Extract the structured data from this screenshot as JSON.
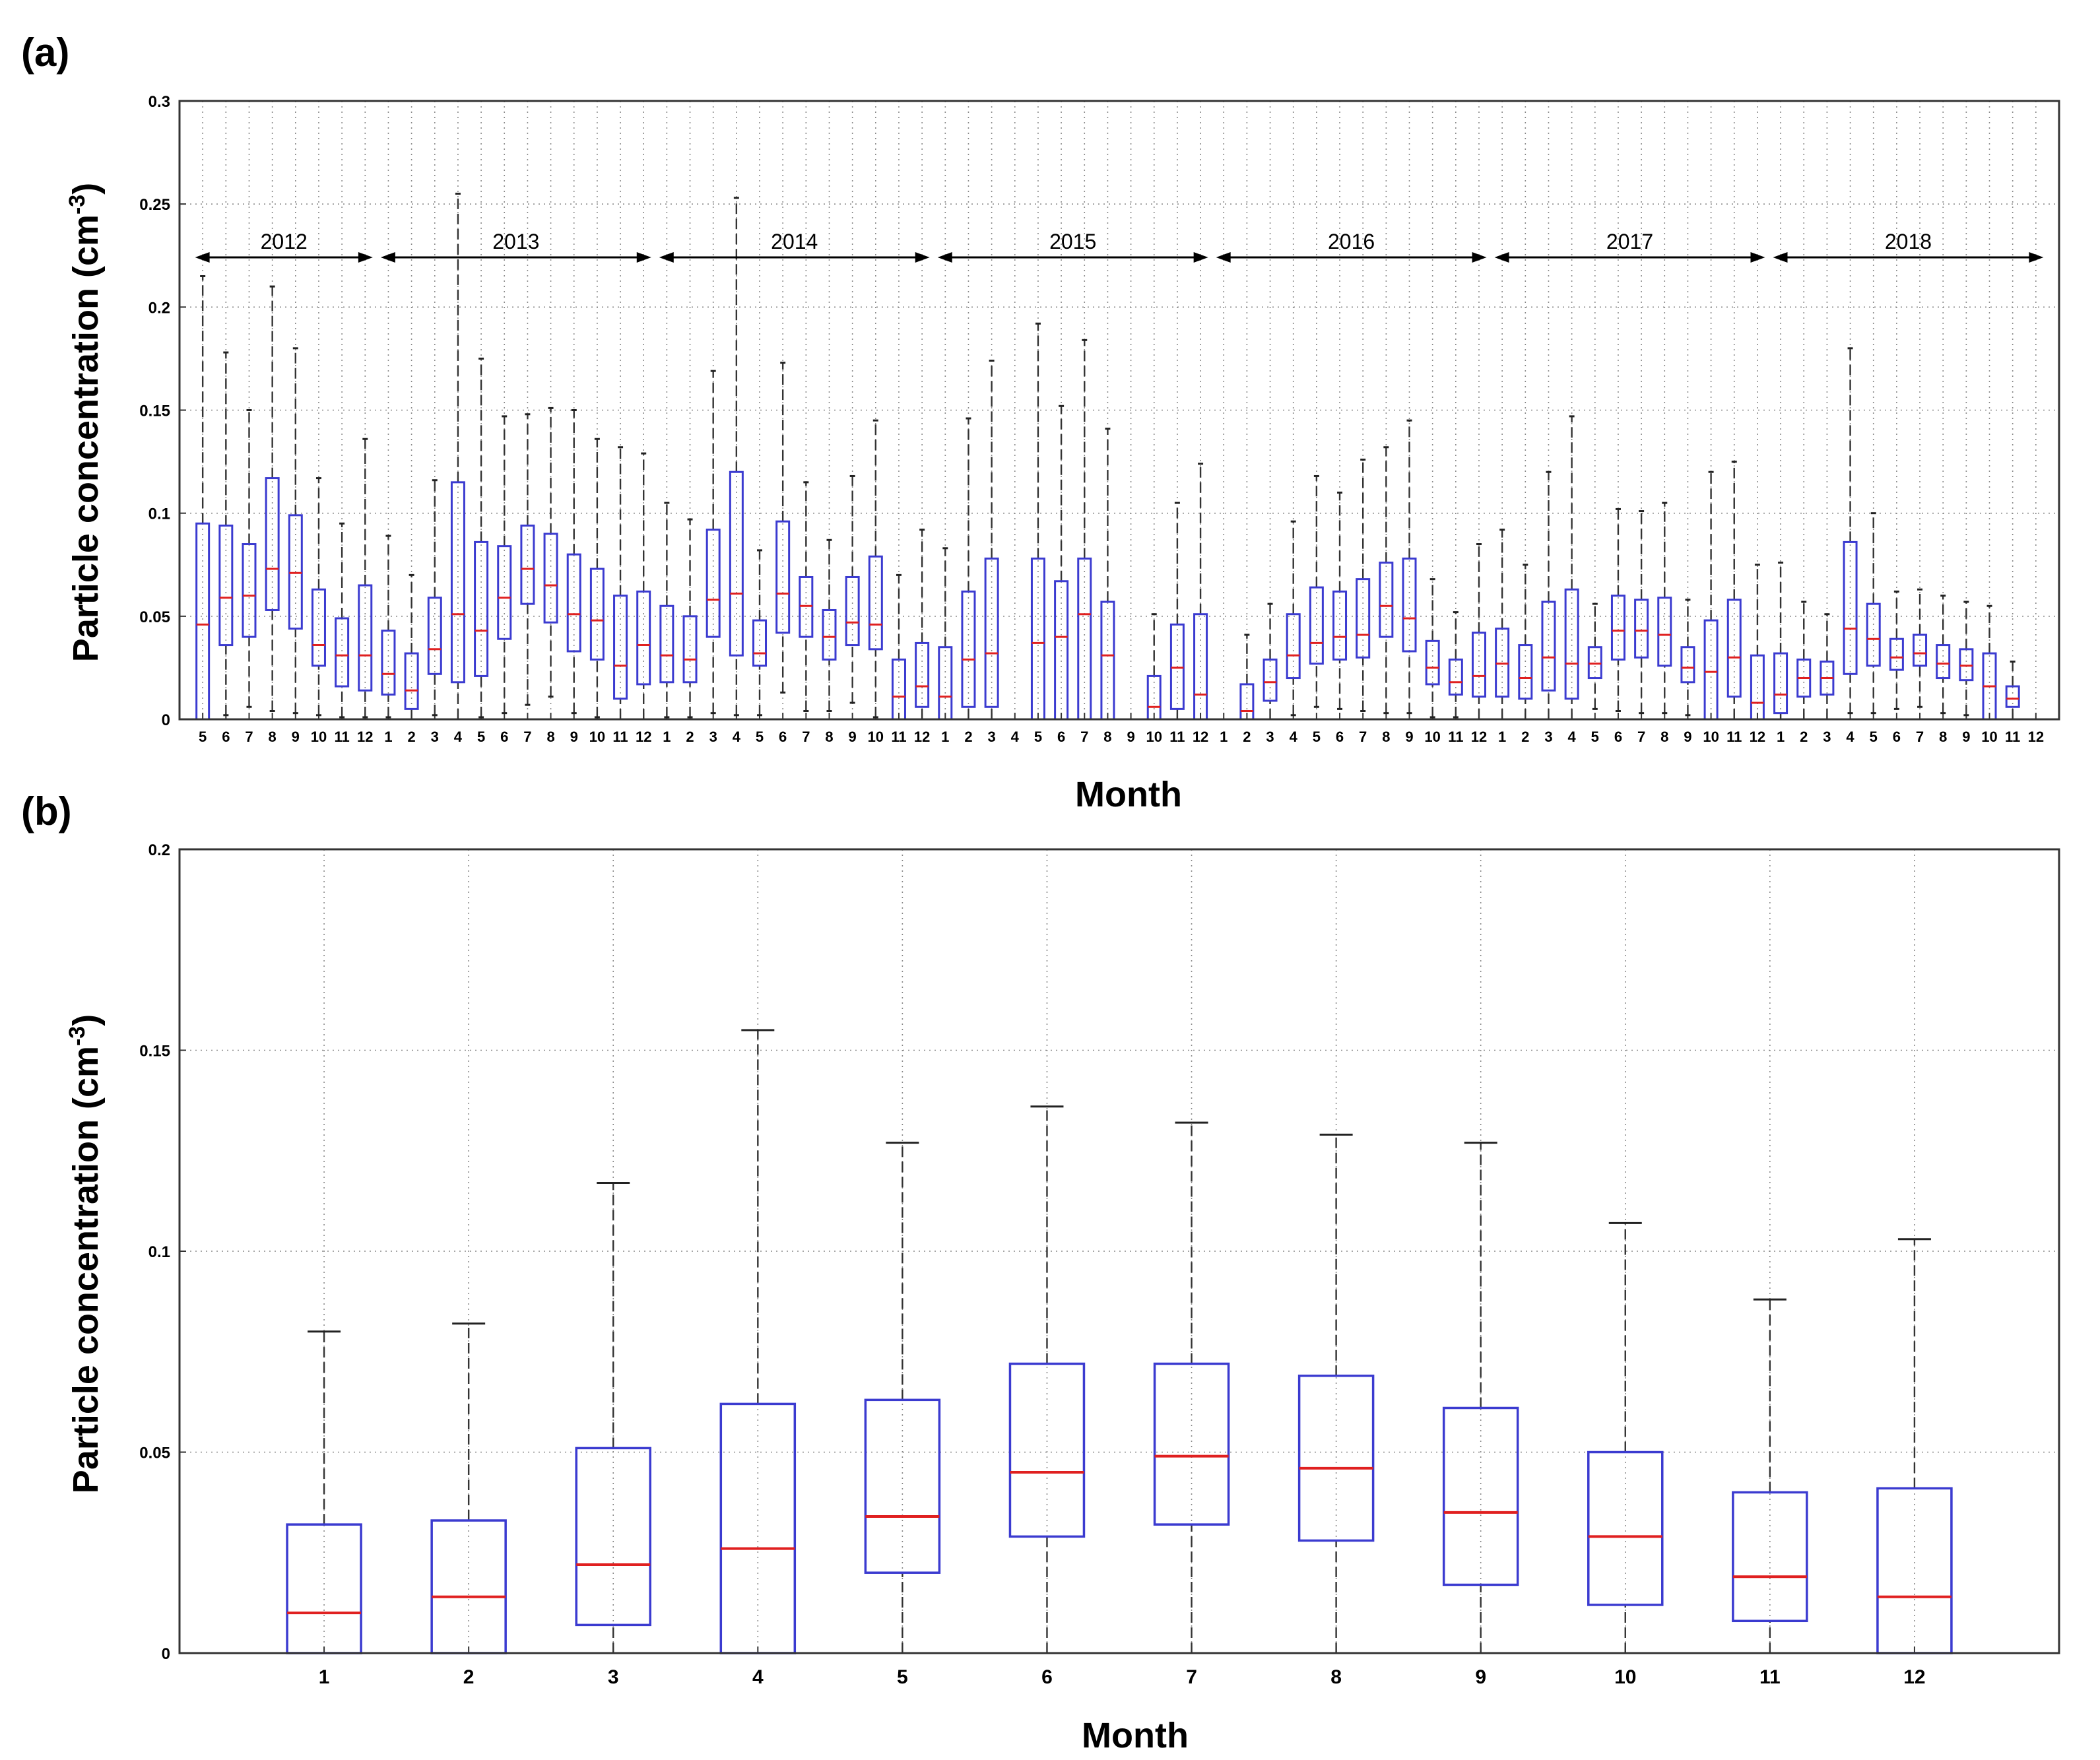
{
  "chart_data": [
    {
      "panel": "(a)",
      "type": "box",
      "xlabel": "Month",
      "ylabel_main": "Particle concentration (cm",
      "ylabel_sup": "-3",
      "ylabel_close": ")",
      "ylim": [
        0,
        0.3
      ],
      "yticks": [
        "0",
        "0.05",
        "0.1",
        "0.15",
        "0.2",
        "0.25",
        "0.3"
      ],
      "grid": true,
      "year_spans": [
        {
          "label": "2012",
          "from": 0,
          "to": 8
        },
        {
          "label": "2013",
          "from": 8,
          "to": 20
        },
        {
          "label": "2014",
          "from": 20,
          "to": 32
        },
        {
          "label": "2015",
          "from": 32,
          "to": 44
        },
        {
          "label": "2016",
          "from": 44,
          "to": 56
        },
        {
          "label": "2017",
          "from": 56,
          "to": 68
        },
        {
          "label": "2018",
          "from": 68,
          "to": 80
        }
      ],
      "boxes": [
        {
          "month": "5",
          "year": 2012,
          "q1": 0.0,
          "median": 0.046,
          "q3": 0.095,
          "whisker_low": 0.0,
          "whisker_high": 0.215
        },
        {
          "month": "6",
          "year": 2012,
          "q1": 0.036,
          "median": 0.059,
          "q3": 0.094,
          "whisker_low": 0.002,
          "whisker_high": 0.178
        },
        {
          "month": "7",
          "year": 2012,
          "q1": 0.04,
          "median": 0.06,
          "q3": 0.085,
          "whisker_low": 0.006,
          "whisker_high": 0.15
        },
        {
          "month": "8",
          "year": 2012,
          "q1": 0.053,
          "median": 0.073,
          "q3": 0.117,
          "whisker_low": 0.004,
          "whisker_high": 0.21
        },
        {
          "month": "9",
          "year": 2012,
          "q1": 0.044,
          "median": 0.071,
          "q3": 0.099,
          "whisker_low": 0.003,
          "whisker_high": 0.18
        },
        {
          "month": "10",
          "year": 2012,
          "q1": 0.026,
          "median": 0.036,
          "q3": 0.063,
          "whisker_low": 0.002,
          "whisker_high": 0.117
        },
        {
          "month": "11",
          "year": 2012,
          "q1": 0.016,
          "median": 0.031,
          "q3": 0.049,
          "whisker_low": 0.001,
          "whisker_high": 0.095
        },
        {
          "month": "12",
          "year": 2012,
          "q1": 0.014,
          "median": 0.031,
          "q3": 0.065,
          "whisker_low": 0.001,
          "whisker_high": 0.136
        },
        {
          "month": "1",
          "year": 2013,
          "q1": 0.012,
          "median": 0.022,
          "q3": 0.043,
          "whisker_low": 0.001,
          "whisker_high": 0.089
        },
        {
          "month": "2",
          "year": 2013,
          "q1": 0.005,
          "median": 0.014,
          "q3": 0.032,
          "whisker_low": 0.0,
          "whisker_high": 0.07
        },
        {
          "month": "3",
          "year": 2013,
          "q1": 0.022,
          "median": 0.034,
          "q3": 0.059,
          "whisker_low": 0.002,
          "whisker_high": 0.116
        },
        {
          "month": "4",
          "year": 2013,
          "q1": 0.018,
          "median": 0.051,
          "q3": 0.115,
          "whisker_low": 0.0,
          "whisker_high": 0.255
        },
        {
          "month": "5",
          "year": 2013,
          "q1": 0.021,
          "median": 0.043,
          "q3": 0.086,
          "whisker_low": 0.001,
          "whisker_high": 0.175
        },
        {
          "month": "6",
          "year": 2013,
          "q1": 0.039,
          "median": 0.059,
          "q3": 0.084,
          "whisker_low": 0.003,
          "whisker_high": 0.147
        },
        {
          "month": "7",
          "year": 2013,
          "q1": 0.056,
          "median": 0.073,
          "q3": 0.094,
          "whisker_low": 0.007,
          "whisker_high": 0.148
        },
        {
          "month": "8",
          "year": 2013,
          "q1": 0.047,
          "median": 0.065,
          "q3": 0.09,
          "whisker_low": 0.011,
          "whisker_high": 0.151
        },
        {
          "month": "9",
          "year": 2013,
          "q1": 0.033,
          "median": 0.051,
          "q3": 0.08,
          "whisker_low": 0.003,
          "whisker_high": 0.15
        },
        {
          "month": "10",
          "year": 2013,
          "q1": 0.029,
          "median": 0.048,
          "q3": 0.073,
          "whisker_low": 0.001,
          "whisker_high": 0.136
        },
        {
          "month": "11",
          "year": 2013,
          "q1": 0.01,
          "median": 0.026,
          "q3": 0.06,
          "whisker_low": 0.0,
          "whisker_high": 0.132
        },
        {
          "month": "12",
          "year": 2013,
          "q1": 0.017,
          "median": 0.036,
          "q3": 0.062,
          "whisker_low": 0.0,
          "whisker_high": 0.129
        },
        {
          "month": "1",
          "year": 2014,
          "q1": 0.018,
          "median": 0.031,
          "q3": 0.055,
          "whisker_low": 0.001,
          "whisker_high": 0.105
        },
        {
          "month": "2",
          "year": 2014,
          "q1": 0.018,
          "median": 0.029,
          "q3": 0.05,
          "whisker_low": 0.001,
          "whisker_high": 0.097
        },
        {
          "month": "3",
          "year": 2014,
          "q1": 0.04,
          "median": 0.058,
          "q3": 0.092,
          "whisker_low": 0.003,
          "whisker_high": 0.169
        },
        {
          "month": "4",
          "year": 2014,
          "q1": 0.031,
          "median": 0.061,
          "q3": 0.12,
          "whisker_low": 0.002,
          "whisker_high": 0.253
        },
        {
          "month": "5",
          "year": 2014,
          "q1": 0.026,
          "median": 0.032,
          "q3": 0.048,
          "whisker_low": 0.002,
          "whisker_high": 0.082
        },
        {
          "month": "6",
          "year": 2014,
          "q1": 0.042,
          "median": 0.061,
          "q3": 0.096,
          "whisker_low": 0.013,
          "whisker_high": 0.173
        },
        {
          "month": "7",
          "year": 2014,
          "q1": 0.04,
          "median": 0.055,
          "q3": 0.069,
          "whisker_low": 0.004,
          "whisker_high": 0.115
        },
        {
          "month": "8",
          "year": 2014,
          "q1": 0.029,
          "median": 0.04,
          "q3": 0.053,
          "whisker_low": 0.004,
          "whisker_high": 0.087
        },
        {
          "month": "9",
          "year": 2014,
          "q1": 0.036,
          "median": 0.047,
          "q3": 0.069,
          "whisker_low": 0.008,
          "whisker_high": 0.118
        },
        {
          "month": "10",
          "year": 2014,
          "q1": 0.034,
          "median": 0.046,
          "q3": 0.079,
          "whisker_low": 0.001,
          "whisker_high": 0.145
        },
        {
          "month": "11",
          "year": 2014,
          "q1": 0.0,
          "median": 0.011,
          "q3": 0.029,
          "whisker_low": 0.0,
          "whisker_high": 0.07
        },
        {
          "month": "12",
          "year": 2014,
          "q1": 0.006,
          "median": 0.016,
          "q3": 0.037,
          "whisker_low": 0.0,
          "whisker_high": 0.092
        },
        {
          "month": "1",
          "year": 2015,
          "q1": 0.0,
          "median": 0.011,
          "q3": 0.035,
          "whisker_low": 0.0,
          "whisker_high": 0.083
        },
        {
          "month": "2",
          "year": 2015,
          "q1": 0.006,
          "median": 0.029,
          "q3": 0.062,
          "whisker_low": 0.0,
          "whisker_high": 0.146
        },
        {
          "month": "3",
          "year": 2015,
          "q1": 0.006,
          "median": 0.032,
          "q3": 0.078,
          "whisker_low": 0.0,
          "whisker_high": 0.174
        },
        {
          "month": "4",
          "year": 2015,
          "empty": true
        },
        {
          "month": "5",
          "year": 2015,
          "q1": 0.0,
          "median": 0.037,
          "q3": 0.078,
          "whisker_low": 0.0,
          "whisker_high": 0.192
        },
        {
          "month": "6",
          "year": 2015,
          "q1": 0.0,
          "median": 0.04,
          "q3": 0.067,
          "whisker_low": 0.0,
          "whisker_high": 0.152
        },
        {
          "month": "7",
          "year": 2015,
          "q1": 0.0,
          "median": 0.051,
          "q3": 0.078,
          "whisker_low": 0.0,
          "whisker_high": 0.184
        },
        {
          "month": "8",
          "year": 2015,
          "q1": 0.0,
          "median": 0.031,
          "q3": 0.057,
          "whisker_low": 0.0,
          "whisker_high": 0.141
        },
        {
          "month": "9",
          "year": 2015,
          "empty": true
        },
        {
          "month": "10",
          "year": 2015,
          "q1": 0.0,
          "median": 0.006,
          "q3": 0.021,
          "whisker_low": 0.0,
          "whisker_high": 0.051
        },
        {
          "month": "11",
          "year": 2015,
          "q1": 0.005,
          "median": 0.025,
          "q3": 0.046,
          "whisker_low": 0.0,
          "whisker_high": 0.105
        },
        {
          "month": "12",
          "year": 2015,
          "q1": 0.0,
          "median": 0.012,
          "q3": 0.051,
          "whisker_low": 0.0,
          "whisker_high": 0.124
        },
        {
          "month": "1",
          "year": 2016,
          "empty": true
        },
        {
          "month": "2",
          "year": 2016,
          "q1": 0.0,
          "median": 0.004,
          "q3": 0.017,
          "whisker_low": 0.0,
          "whisker_high": 0.041
        },
        {
          "month": "3",
          "year": 2016,
          "q1": 0.009,
          "median": 0.018,
          "q3": 0.029,
          "whisker_low": 0.0,
          "whisker_high": 0.056
        },
        {
          "month": "4",
          "year": 2016,
          "q1": 0.02,
          "median": 0.031,
          "q3": 0.051,
          "whisker_low": 0.002,
          "whisker_high": 0.096
        },
        {
          "month": "5",
          "year": 2016,
          "q1": 0.027,
          "median": 0.037,
          "q3": 0.064,
          "whisker_low": 0.006,
          "whisker_high": 0.118
        },
        {
          "month": "6",
          "year": 2016,
          "q1": 0.029,
          "median": 0.04,
          "q3": 0.062,
          "whisker_low": 0.005,
          "whisker_high": 0.11
        },
        {
          "month": "7",
          "year": 2016,
          "q1": 0.03,
          "median": 0.041,
          "q3": 0.068,
          "whisker_low": 0.004,
          "whisker_high": 0.126
        },
        {
          "month": "8",
          "year": 2016,
          "q1": 0.04,
          "median": 0.055,
          "q3": 0.076,
          "whisker_low": 0.003,
          "whisker_high": 0.132
        },
        {
          "month": "9",
          "year": 2016,
          "q1": 0.033,
          "median": 0.049,
          "q3": 0.078,
          "whisker_low": 0.003,
          "whisker_high": 0.145
        },
        {
          "month": "10",
          "year": 2016,
          "q1": 0.017,
          "median": 0.025,
          "q3": 0.038,
          "whisker_low": 0.001,
          "whisker_high": 0.068
        },
        {
          "month": "11",
          "year": 2016,
          "q1": 0.012,
          "median": 0.018,
          "q3": 0.029,
          "whisker_low": 0.001,
          "whisker_high": 0.052
        },
        {
          "month": "12",
          "year": 2016,
          "q1": 0.011,
          "median": 0.021,
          "q3": 0.042,
          "whisker_low": 0.0,
          "whisker_high": 0.085
        },
        {
          "month": "1",
          "year": 2017,
          "q1": 0.011,
          "median": 0.027,
          "q3": 0.044,
          "whisker_low": 0.0,
          "whisker_high": 0.092
        },
        {
          "month": "2",
          "year": 2017,
          "q1": 0.01,
          "median": 0.02,
          "q3": 0.036,
          "whisker_low": 0.0,
          "whisker_high": 0.075
        },
        {
          "month": "3",
          "year": 2017,
          "q1": 0.014,
          "median": 0.03,
          "q3": 0.057,
          "whisker_low": 0.0,
          "whisker_high": 0.12
        },
        {
          "month": "4",
          "year": 2017,
          "q1": 0.01,
          "median": 0.027,
          "q3": 0.063,
          "whisker_low": 0.0,
          "whisker_high": 0.147
        },
        {
          "month": "5",
          "year": 2017,
          "q1": 0.02,
          "median": 0.027,
          "q3": 0.035,
          "whisker_low": 0.005,
          "whisker_high": 0.056
        },
        {
          "month": "6",
          "year": 2017,
          "q1": 0.029,
          "median": 0.043,
          "q3": 0.06,
          "whisker_low": 0.004,
          "whisker_high": 0.102
        },
        {
          "month": "7",
          "year": 2017,
          "q1": 0.03,
          "median": 0.043,
          "q3": 0.058,
          "whisker_low": 0.003,
          "whisker_high": 0.101
        },
        {
          "month": "8",
          "year": 2017,
          "q1": 0.026,
          "median": 0.041,
          "q3": 0.059,
          "whisker_low": 0.003,
          "whisker_high": 0.105
        },
        {
          "month": "9",
          "year": 2017,
          "q1": 0.018,
          "median": 0.025,
          "q3": 0.035,
          "whisker_low": 0.002,
          "whisker_high": 0.058
        },
        {
          "month": "10",
          "year": 2017,
          "q1": 0.0,
          "median": 0.023,
          "q3": 0.048,
          "whisker_low": 0.0,
          "whisker_high": 0.12
        },
        {
          "month": "11",
          "year": 2017,
          "q1": 0.011,
          "median": 0.03,
          "q3": 0.058,
          "whisker_low": 0.0,
          "whisker_high": 0.125
        },
        {
          "month": "12",
          "year": 2017,
          "q1": 0.0,
          "median": 0.008,
          "q3": 0.031,
          "whisker_low": 0.0,
          "whisker_high": 0.075
        },
        {
          "month": "1",
          "year": 2018,
          "q1": 0.003,
          "median": 0.012,
          "q3": 0.032,
          "whisker_low": 0.0,
          "whisker_high": 0.076
        },
        {
          "month": "2",
          "year": 2018,
          "q1": 0.011,
          "median": 0.02,
          "q3": 0.029,
          "whisker_low": 0.0,
          "whisker_high": 0.057
        },
        {
          "month": "3",
          "year": 2018,
          "q1": 0.012,
          "median": 0.02,
          "q3": 0.028,
          "whisker_low": 0.0,
          "whisker_high": 0.051
        },
        {
          "month": "4",
          "year": 2018,
          "q1": 0.022,
          "median": 0.044,
          "q3": 0.086,
          "whisker_low": 0.003,
          "whisker_high": 0.18
        },
        {
          "month": "5",
          "year": 2018,
          "q1": 0.026,
          "median": 0.039,
          "q3": 0.056,
          "whisker_low": 0.003,
          "whisker_high": 0.1
        },
        {
          "month": "6",
          "year": 2018,
          "q1": 0.024,
          "median": 0.03,
          "q3": 0.039,
          "whisker_low": 0.005,
          "whisker_high": 0.062
        },
        {
          "month": "7",
          "year": 2018,
          "q1": 0.026,
          "median": 0.032,
          "q3": 0.041,
          "whisker_low": 0.006,
          "whisker_high": 0.063
        },
        {
          "month": "8",
          "year": 2018,
          "q1": 0.02,
          "median": 0.027,
          "q3": 0.036,
          "whisker_low": 0.003,
          "whisker_high": 0.06
        },
        {
          "month": "9",
          "year": 2018,
          "q1": 0.019,
          "median": 0.026,
          "q3": 0.034,
          "whisker_low": 0.002,
          "whisker_high": 0.057
        },
        {
          "month": "10",
          "year": 2018,
          "q1": 0.0,
          "median": 0.016,
          "q3": 0.032,
          "whisker_low": 0.0,
          "whisker_high": 0.055
        },
        {
          "month": "11",
          "year": 2018,
          "q1": 0.006,
          "median": 0.01,
          "q3": 0.016,
          "whisker_low": 0.0,
          "whisker_high": 0.028
        },
        {
          "month": "12",
          "year": 2018,
          "empty": true
        }
      ]
    },
    {
      "panel": "(b)",
      "type": "box",
      "xlabel": "Month",
      "ylabel_main": "Particle concentration (cm",
      "ylabel_sup": "-3",
      "ylabel_close": ")",
      "ylim": [
        0,
        0.2
      ],
      "yticks": [
        "0",
        "0.05",
        "0.1",
        "0.15",
        "0.2"
      ],
      "grid": true,
      "boxes": [
        {
          "month": "1",
          "q1": 0.0,
          "median": 0.01,
          "q3": 0.032,
          "whisker_low": 0.0,
          "whisker_high": 0.08
        },
        {
          "month": "2",
          "q1": 0.0,
          "median": 0.014,
          "q3": 0.033,
          "whisker_low": 0.0,
          "whisker_high": 0.082
        },
        {
          "month": "3",
          "q1": 0.007,
          "median": 0.022,
          "q3": 0.051,
          "whisker_low": 0.0,
          "whisker_high": 0.117
        },
        {
          "month": "4",
          "q1": 0.0,
          "median": 0.026,
          "q3": 0.062,
          "whisker_low": 0.0,
          "whisker_high": 0.155
        },
        {
          "month": "5",
          "q1": 0.02,
          "median": 0.034,
          "q3": 0.063,
          "whisker_low": 0.0,
          "whisker_high": 0.127
        },
        {
          "month": "6",
          "q1": 0.029,
          "median": 0.045,
          "q3": 0.072,
          "whisker_low": 0.0,
          "whisker_high": 0.136
        },
        {
          "month": "7",
          "q1": 0.032,
          "median": 0.049,
          "q3": 0.072,
          "whisker_low": 0.0,
          "whisker_high": 0.132
        },
        {
          "month": "8",
          "q1": 0.028,
          "median": 0.046,
          "q3": 0.069,
          "whisker_low": 0.0,
          "whisker_high": 0.129
        },
        {
          "month": "9",
          "q1": 0.017,
          "median": 0.035,
          "q3": 0.061,
          "whisker_low": 0.0,
          "whisker_high": 0.127
        },
        {
          "month": "10",
          "q1": 0.012,
          "median": 0.029,
          "q3": 0.05,
          "whisker_low": 0.0,
          "whisker_high": 0.107
        },
        {
          "month": "11",
          "q1": 0.008,
          "median": 0.019,
          "q3": 0.04,
          "whisker_low": 0.0,
          "whisker_high": 0.088
        },
        {
          "month": "12",
          "q1": 0.0,
          "median": 0.014,
          "q3": 0.041,
          "whisker_low": 0.0,
          "whisker_high": 0.103
        }
      ]
    }
  ],
  "colors": {
    "box": "#3b3bd0",
    "median": "#e02020",
    "whisker": "#333333",
    "grid": "#8a8a8a"
  }
}
